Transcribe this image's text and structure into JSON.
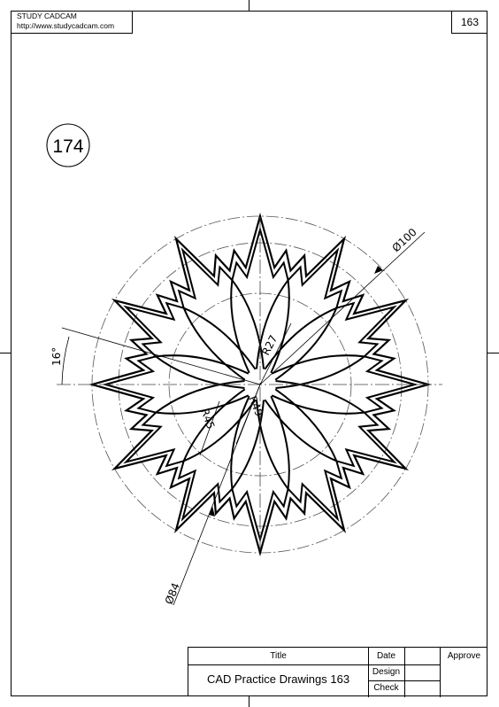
{
  "header": {
    "company": "STUDY CADCAM",
    "url": "http://www.studycadcam.com",
    "sheet_number": "163"
  },
  "drawing": {
    "part_number": "174",
    "dimensions": {
      "outer_diameter": "Ø100",
      "inner_diameter": "Ø84",
      "radius_small": "R27",
      "radius_mid": "R45",
      "radius_large": "R49",
      "angle": "16°"
    }
  },
  "title_block": {
    "title_label": "Title",
    "title_value": "CAD Practice Drawings 163",
    "date_label": "Date",
    "design_label": "Design",
    "check_label": "Check",
    "approve_label": "Approve"
  }
}
